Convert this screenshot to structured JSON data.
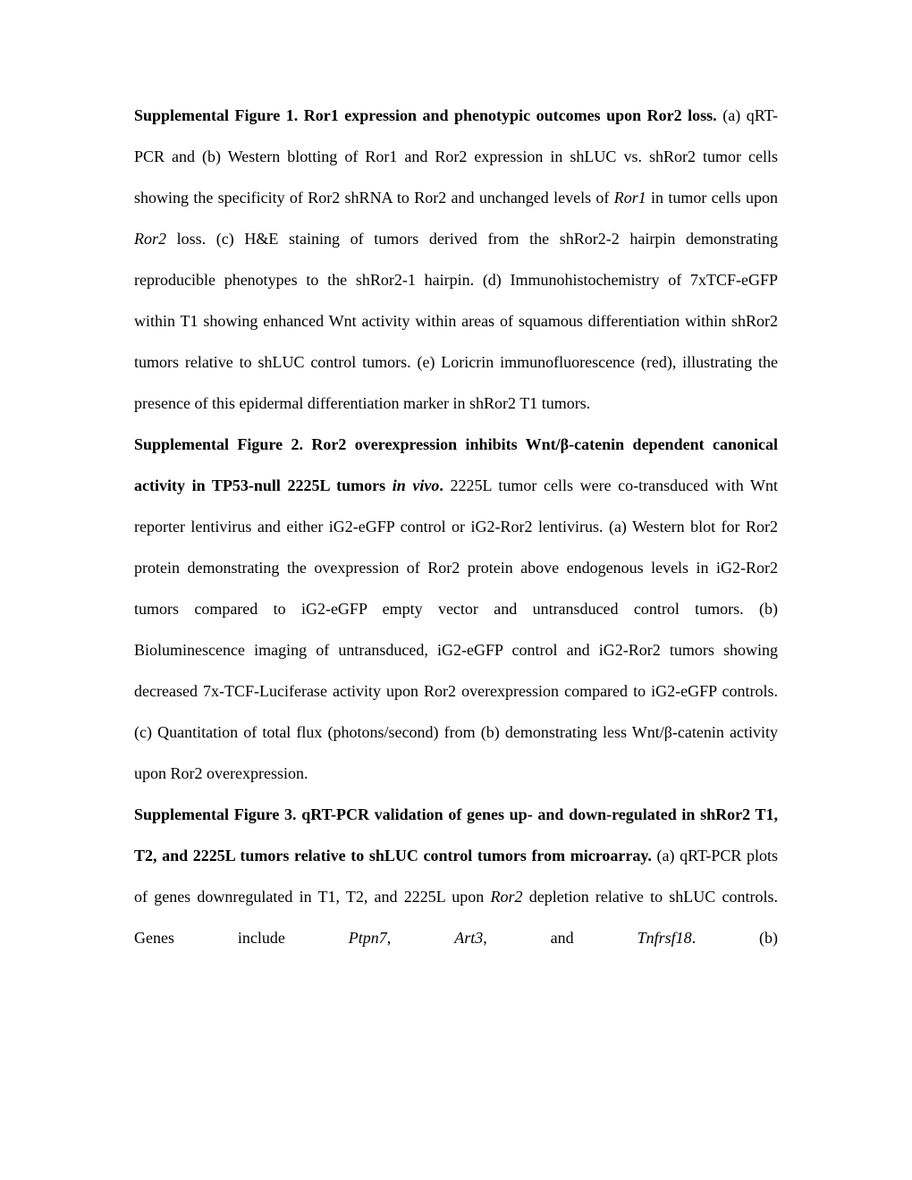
{
  "paragraphs": [
    {
      "runs": [
        "Supplemental Figure 1. Ror1 expression and phenotypic outcomes upon Ror2 loss.",
        " (a) qRT-PCR and (b) Western blotting of Ror1 and Ror2 expression in shLUC vs. shRor2 tumor cells showing the specificity of Ror2 shRNA to Ror2 and unchanged levels of ",
        "Ror1",
        " in tumor cells upon ",
        "Ror2",
        " loss.  (c) H&E staining of tumors derived from the shRor2-2 hairpin demonstrating reproducible phenotypes to the shRor2-1 hairpin.  (d) Immunohistochemistry of 7xTCF-eGFP within T1 showing enhanced Wnt activity within areas of squamous differentiation within shRor2 tumors relative to shLUC control tumors.  (e) Loricrin immunofluorescence (red), illustrating the presence of this epidermal differentiation marker in shRor2 T1 tumors."
      ]
    },
    {
      "runs": [
        "Supplemental Figure 2.   Ror2 overexpression inhibits Wnt/β-catenin dependent canonical activity in TP53-null 2225L tumors ",
        "in vivo",
        ".",
        " 2225L tumor cells were co-transduced with Wnt reporter lentivirus and either iG2-eGFP control or iG2-Ror2 lentivirus. (a) Western blot for Ror2 protein demonstrating the ovexpression of Ror2 protein above endogenous levels in iG2-Ror2 tumors compared to iG2-eGFP empty vector and untransduced control tumors.  (b) Bioluminescence imaging of untransduced, iG2-eGFP control and iG2-Ror2 tumors showing decreased 7x-TCF-Luciferase activity upon Ror2 overexpression compared to iG2-eGFP controls. (c) Quantitation of total flux (photons/second) from (b) demonstrating less Wnt/β-catenin activity upon Ror2 overexpression."
      ]
    },
    {
      "runs": [
        "Supplemental Figure 3. qRT-PCR validation of genes up- and down-regulated in shRor2 T1, T2, and 2225L tumors relative to shLUC control tumors from microarray.",
        " (a) qRT-PCR plots of genes downregulated in T1, T2, and 2225L upon ",
        "Ror2",
        " depletion relative to shLUC controls. Genes include ",
        "Ptpn7",
        ", ",
        "Art3",
        ", and ",
        "Tnfrsf18",
        ".  (b)"
      ]
    }
  ]
}
